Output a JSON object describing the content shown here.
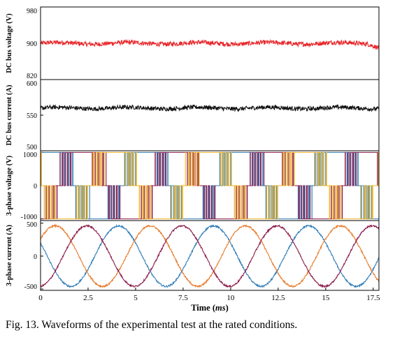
{
  "caption": "Fig. 13.  Waveforms of the experimental test at the rated conditions.",
  "colors": {
    "dc_voltage": "#e8262a",
    "dc_current": "#111111",
    "phase_a": "#2e7bb6",
    "phase_b": "#e87a2a",
    "phase_c": "#f0b323",
    "phase_c_current": "#8b1a4a"
  },
  "chart_data": [
    {
      "type": "line",
      "ylabel": "DC bus voltage (V)",
      "yticks": [
        820,
        900,
        980
      ],
      "ylim": [
        820,
        980
      ],
      "xlim": [
        0,
        17.8
      ],
      "series": [
        {
          "mean": 900,
          "ripple": 5,
          "trend": "flat, slight dip to 890 at end"
        }
      ]
    },
    {
      "type": "line",
      "ylabel": "DC bus current (A)",
      "yticks": [
        500,
        550,
        600
      ],
      "ylim": [
        500,
        600
      ],
      "xlim": [
        0,
        17.8
      ],
      "series": [
        {
          "mean": 560,
          "ripple": 3,
          "trend": "flat, about 556-562"
        }
      ]
    },
    {
      "type": "line",
      "ylabel": "3-phase voltage (V)",
      "yticks": [
        -1000,
        0,
        1000
      ],
      "ylim": [
        -1050,
        1050
      ],
      "xlim": [
        0,
        17.8
      ],
      "series": [
        {
          "phase": "a",
          "levels": [
            -1000,
            1000
          ],
          "fundamental_period": 5.0
        },
        {
          "phase": "b",
          "levels": [
            -1000,
            1000
          ],
          "fundamental_period": 5.0
        },
        {
          "phase": "c",
          "levels": [
            -1000,
            1000
          ],
          "fundamental_period": 5.0
        }
      ]
    },
    {
      "type": "line",
      "ylabel": "3-phase current (A)",
      "yticks": [
        -500,
        0,
        500
      ],
      "ylim": [
        -520,
        540
      ],
      "xlim": [
        0,
        17.8
      ],
      "xticks": [
        0,
        2.5,
        5,
        7.5,
        10,
        12.5,
        15,
        17.5
      ],
      "xticklabels": [
        "0",
        "2.5",
        "5",
        "7.5",
        "10",
        "12.5",
        "15",
        "17.5"
      ],
      "xlabel": "Time (ms)",
      "series": [
        {
          "phase": "a",
          "amplitude": 460,
          "period": 5.0,
          "phase_deg": 0
        },
        {
          "phase": "b",
          "amplitude": 460,
          "period": 5.0,
          "phase_deg": -120
        },
        {
          "phase": "c",
          "amplitude": 460,
          "period": 5.0,
          "phase_deg": 120
        }
      ]
    }
  ]
}
